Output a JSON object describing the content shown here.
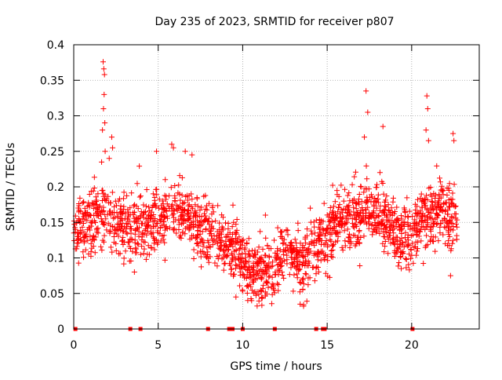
{
  "chart_data": {
    "type": "scatter",
    "title": "Day 235 of 2023, SRMTID for receiver p807",
    "xlabel": "GPS time / hours",
    "ylabel": "SRMTID / TECUs",
    "xlim": [
      0,
      24
    ],
    "ylim": [
      0,
      0.4
    ],
    "xticks": [
      0,
      5,
      10,
      15,
      20
    ],
    "yticks": [
      0,
      0.05,
      0.1,
      0.15,
      0.2,
      0.25,
      0.3,
      0.35,
      0.4
    ],
    "xtick_labels": [
      "0",
      "5",
      "10",
      "15",
      "20"
    ],
    "ytick_labels": [
      "0",
      "0.05",
      "0.1",
      "0.15",
      "0.2",
      "0.25",
      "0.3",
      "0.35",
      "0.4"
    ],
    "grid": true,
    "marker": "plus",
    "color": "#ff0000",
    "series": [
      {
        "name": "SRMTID",
        "trend": {
          "x": [
            0,
            1,
            1.8,
            2.5,
            3.5,
            4.5,
            5.5,
            6.5,
            7.5,
            8.5,
            9.5,
            10.5,
            11.5,
            12.5,
            13.5,
            14.5,
            15.5,
            16.5,
            17.5,
            18.5,
            19.5,
            20.5,
            21.5,
            22.7
          ],
          "y": [
            0.14,
            0.15,
            0.16,
            0.15,
            0.14,
            0.15,
            0.16,
            0.17,
            0.14,
            0.13,
            0.11,
            0.08,
            0.08,
            0.11,
            0.09,
            0.12,
            0.15,
            0.16,
            0.17,
            0.15,
            0.13,
            0.15,
            0.17,
            0.15
          ]
        },
        "points": [
          {
            "x": 1.74,
            "y": 0.376
          },
          {
            "x": 1.78,
            "y": 0.366
          },
          {
            "x": 1.82,
            "y": 0.358
          },
          {
            "x": 1.8,
            "y": 0.33
          },
          {
            "x": 1.76,
            "y": 0.31
          },
          {
            "x": 1.84,
            "y": 0.29
          },
          {
            "x": 1.7,
            "y": 0.28
          },
          {
            "x": 1.86,
            "y": 0.25
          },
          {
            "x": 1.65,
            "y": 0.235
          },
          {
            "x": 2.25,
            "y": 0.27
          },
          {
            "x": 2.3,
            "y": 0.255
          },
          {
            "x": 2.1,
            "y": 0.24
          },
          {
            "x": 4.9,
            "y": 0.25
          },
          {
            "x": 5.8,
            "y": 0.26
          },
          {
            "x": 5.9,
            "y": 0.255
          },
          {
            "x": 6.6,
            "y": 0.25
          },
          {
            "x": 7.0,
            "y": 0.245
          },
          {
            "x": 17.3,
            "y": 0.335
          },
          {
            "x": 17.4,
            "y": 0.305
          },
          {
            "x": 17.2,
            "y": 0.27
          },
          {
            "x": 18.3,
            "y": 0.285
          },
          {
            "x": 20.9,
            "y": 0.328
          },
          {
            "x": 20.95,
            "y": 0.31
          },
          {
            "x": 20.85,
            "y": 0.28
          },
          {
            "x": 21.0,
            "y": 0.265
          },
          {
            "x": 22.45,
            "y": 0.275
          },
          {
            "x": 22.5,
            "y": 0.265
          },
          {
            "x": 14.0,
            "y": 0.17
          },
          {
            "x": 13.4,
            "y": 0.035
          },
          {
            "x": 13.6,
            "y": 0.032
          },
          {
            "x": 9.6,
            "y": 0.045
          },
          {
            "x": 10.3,
            "y": 0.04
          },
          {
            "x": 22.3,
            "y": 0.075
          }
        ],
        "zero_points": [
          0.1,
          3.35,
          3.95,
          7.95,
          9.2,
          9.35,
          9.4,
          10.0,
          11.9,
          14.35,
          14.75,
          14.85,
          20.05
        ]
      }
    ]
  }
}
